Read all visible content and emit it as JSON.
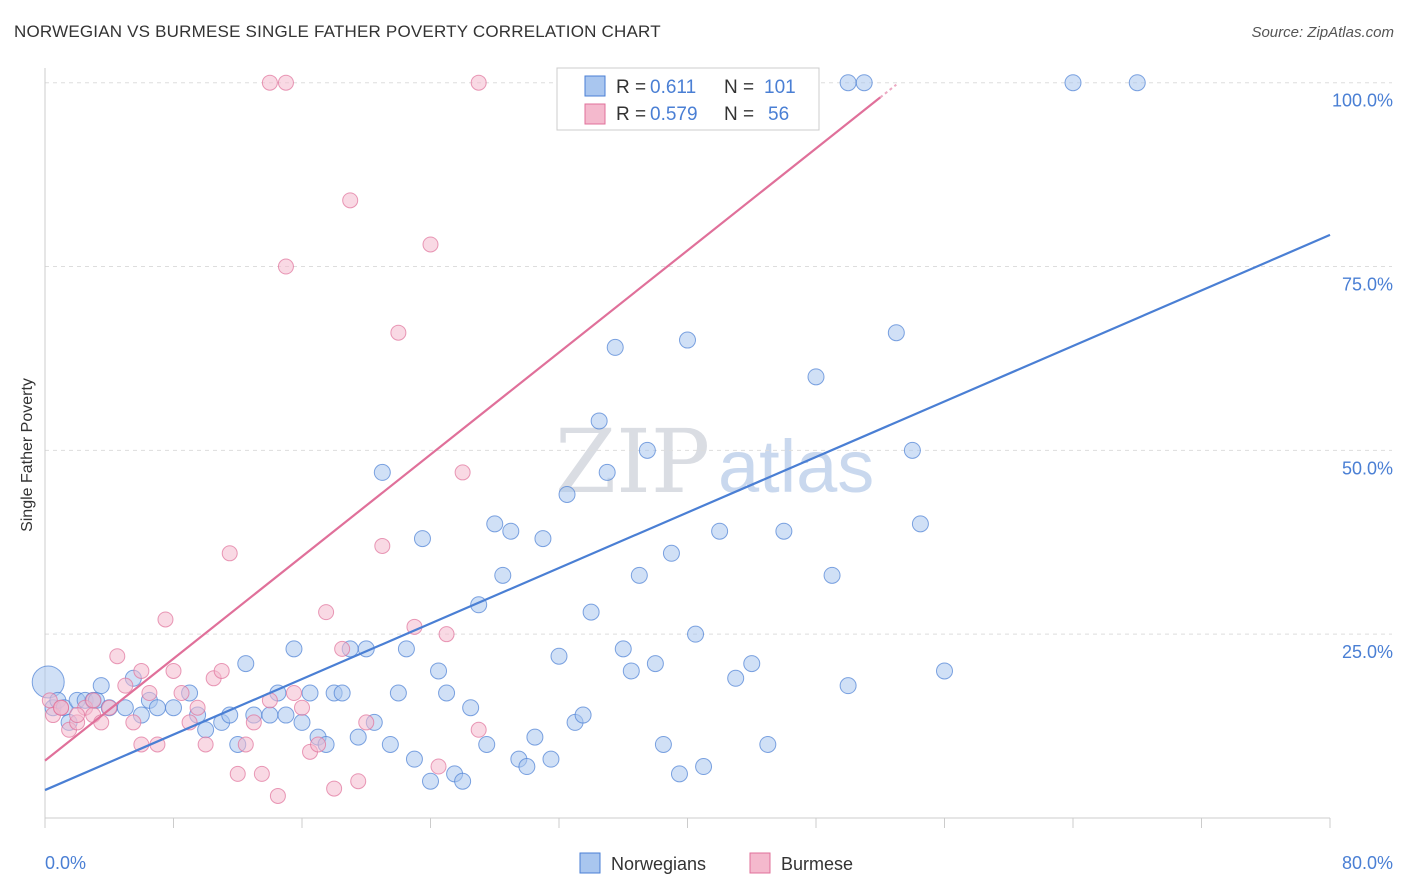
{
  "title": "NORWEGIAN VS BURMESE SINGLE FATHER POVERTY CORRELATION CHART",
  "source": "Source: ZipAtlas.com",
  "watermark": {
    "zip": "ZIP",
    "atlas": "atlas"
  },
  "colors": {
    "blue": "#4a7fd4",
    "blue_fill": "#a9c6ef",
    "pink": "#e0709a",
    "pink_fill": "#f4b9cd",
    "grid": "#dddddd"
  },
  "legend": {
    "r_label": "R =",
    "n_label": "N =",
    "rows": [
      {
        "r": "0.611",
        "n": "101"
      },
      {
        "r": "0.579",
        "n": "56"
      }
    ]
  },
  "chart_data": {
    "type": "scatter",
    "title": "NORWEGIAN VS BURMESE SINGLE FATHER POVERTY CORRELATION CHART",
    "xlabel": "",
    "ylabel": "Single Father Poverty",
    "xlim": [
      0,
      80
    ],
    "ylim": [
      0,
      102
    ],
    "x_tick_labels": [
      "0.0%",
      "80.0%"
    ],
    "y_ticks": [
      25,
      50,
      75,
      100
    ],
    "y_tick_labels": [
      "25.0%",
      "50.0%",
      "75.0%",
      "100.0%"
    ],
    "grid": true,
    "legend_position": "top-center",
    "series": [
      {
        "name": "Norwegians",
        "r": 0.611,
        "n": 101,
        "trend": {
          "x": [
            0,
            80
          ],
          "y": [
            3.8,
            79.3
          ]
        },
        "points": [
          [
            0.2,
            18.5
          ],
          [
            0.5,
            15
          ],
          [
            0.8,
            16
          ],
          [
            1.2,
            15
          ],
          [
            1.5,
            13
          ],
          [
            2,
            16
          ],
          [
            2.5,
            16
          ],
          [
            3,
            16
          ],
          [
            3.2,
            16
          ],
          [
            3.5,
            18
          ],
          [
            4,
            15
          ],
          [
            5,
            15
          ],
          [
            5.5,
            19
          ],
          [
            6,
            14
          ],
          [
            6.5,
            16
          ],
          [
            7,
            15
          ],
          [
            8,
            15
          ],
          [
            9,
            17
          ],
          [
            9.5,
            14
          ],
          [
            10,
            12
          ],
          [
            11,
            13
          ],
          [
            11.5,
            14
          ],
          [
            12,
            10
          ],
          [
            12.5,
            21
          ],
          [
            13,
            14
          ],
          [
            14,
            14
          ],
          [
            14.5,
            17
          ],
          [
            15,
            14
          ],
          [
            15.5,
            23
          ],
          [
            16,
            13
          ],
          [
            16.5,
            17
          ],
          [
            17,
            11
          ],
          [
            17.5,
            10
          ],
          [
            18,
            17
          ],
          [
            18.5,
            17
          ],
          [
            19,
            23
          ],
          [
            19.5,
            11
          ],
          [
            20,
            23
          ],
          [
            20.5,
            13
          ],
          [
            21,
            47
          ],
          [
            21.5,
            10
          ],
          [
            22,
            17
          ],
          [
            22.5,
            23
          ],
          [
            23,
            8
          ],
          [
            23.5,
            38
          ],
          [
            24,
            5
          ],
          [
            24.5,
            20
          ],
          [
            25,
            17
          ],
          [
            25.5,
            6
          ],
          [
            26,
            5
          ],
          [
            26.5,
            15
          ],
          [
            27,
            29
          ],
          [
            27.5,
            10
          ],
          [
            28,
            40
          ],
          [
            28.5,
            33
          ],
          [
            29,
            39
          ],
          [
            29.5,
            8
          ],
          [
            30,
            7
          ],
          [
            30.5,
            11
          ],
          [
            31,
            38
          ],
          [
            31.5,
            8
          ],
          [
            32,
            22
          ],
          [
            32.5,
            44
          ],
          [
            33,
            13
          ],
          [
            33.5,
            14
          ],
          [
            34,
            28
          ],
          [
            34.5,
            54
          ],
          [
            35,
            47
          ],
          [
            35.5,
            64
          ],
          [
            36,
            23
          ],
          [
            36.5,
            20
          ],
          [
            37,
            33
          ],
          [
            37.5,
            50
          ],
          [
            38,
            21
          ],
          [
            38.5,
            10
          ],
          [
            39,
            36
          ],
          [
            39.5,
            6
          ],
          [
            40,
            65
          ],
          [
            40.5,
            25
          ],
          [
            41,
            7
          ],
          [
            42,
            39
          ],
          [
            43,
            19
          ],
          [
            44,
            21
          ],
          [
            45,
            10
          ],
          [
            46,
            39
          ],
          [
            48,
            60
          ],
          [
            49,
            33
          ],
          [
            50,
            18
          ],
          [
            53,
            66
          ],
          [
            54,
            50
          ],
          [
            54.5,
            40
          ],
          [
            56,
            20
          ],
          [
            38,
            100
          ],
          [
            40,
            100
          ],
          [
            47,
            100
          ],
          [
            50,
            100
          ],
          [
            51,
            100
          ],
          [
            64,
            100
          ],
          [
            68,
            100
          ],
          [
            37,
            100
          ],
          [
            45,
            100
          ]
        ]
      },
      {
        "name": "Burmese",
        "r": 0.579,
        "n": 56,
        "trend": {
          "x": [
            0,
            52
          ],
          "y": [
            7.8,
            98
          ]
        },
        "points": [
          [
            0.3,
            16
          ],
          [
            0.5,
            14
          ],
          [
            1,
            15
          ],
          [
            1.5,
            12
          ],
          [
            2,
            13
          ],
          [
            2.5,
            15
          ],
          [
            3,
            14
          ],
          [
            3.5,
            13
          ],
          [
            4,
            15
          ],
          [
            4.5,
            22
          ],
          [
            5,
            18
          ],
          [
            5.5,
            13
          ],
          [
            6,
            10
          ],
          [
            6.5,
            17
          ],
          [
            7,
            10
          ],
          [
            7.5,
            27
          ],
          [
            8,
            20
          ],
          [
            8.5,
            17
          ],
          [
            9,
            13
          ],
          [
            9.5,
            15
          ],
          [
            10,
            10
          ],
          [
            10.5,
            19
          ],
          [
            11,
            20
          ],
          [
            11.5,
            36
          ],
          [
            12,
            6
          ],
          [
            12.5,
            10
          ],
          [
            13,
            13
          ],
          [
            13.5,
            6
          ],
          [
            14,
            16
          ],
          [
            14.5,
            3
          ],
          [
            15,
            75
          ],
          [
            15.5,
            17
          ],
          [
            16,
            15
          ],
          [
            16.5,
            9
          ],
          [
            17,
            10
          ],
          [
            17.5,
            28
          ],
          [
            18,
            4
          ],
          [
            18.5,
            23
          ],
          [
            19,
            84
          ],
          [
            19.5,
            5
          ],
          [
            20,
            13
          ],
          [
            21,
            37
          ],
          [
            22,
            66
          ],
          [
            23,
            26
          ],
          [
            24,
            78
          ],
          [
            24.5,
            7
          ],
          [
            25,
            25
          ],
          [
            26,
            47
          ],
          [
            27,
            12
          ],
          [
            14,
            100
          ],
          [
            15,
            100
          ],
          [
            27,
            100
          ],
          [
            6,
            20
          ],
          [
            3,
            16
          ],
          [
            2,
            14
          ],
          [
            1,
            15
          ]
        ]
      }
    ]
  },
  "bottom_legend": [
    "Norwegians",
    "Burmese"
  ]
}
